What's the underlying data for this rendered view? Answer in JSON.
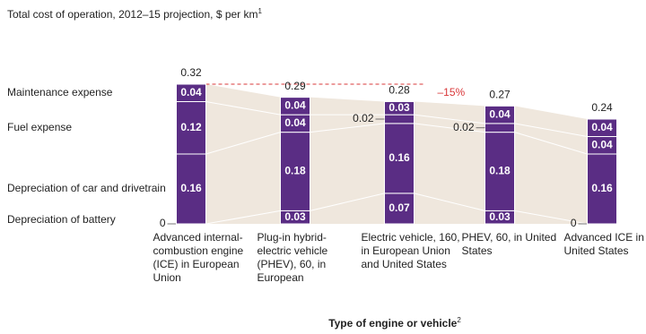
{
  "chart_data": {
    "type": "stacked-bar",
    "title": "Total cost of operation, 2012–15 projection, $ per km",
    "title_note": "1",
    "x_label": "Type of engine or vehicle",
    "x_label_note": "2",
    "categories": [
      "Advanced internal-combustion engine (ICE) in European Union",
      "Plug-in hybrid-electric vehicle (PHEV), 60, in European",
      "Electric vehicle, 160, in European Union and United States",
      "PHEV, 60, in United States",
      "Advanced ICE in United States"
    ],
    "series": [
      {
        "name": "Depreciation of battery",
        "color": "#5a2d84",
        "values": [
          0,
          0.03,
          0.07,
          0.03,
          0
        ]
      },
      {
        "name": "Depreciation of car and drivetrain",
        "color": "#5a2d84",
        "values": [
          0.16,
          0.18,
          0.16,
          0.18,
          0.16
        ]
      },
      {
        "name": "Fuel expense",
        "color": "#5a2d84",
        "values": [
          0.12,
          0.04,
          0.02,
          0.02,
          0.04
        ]
      },
      {
        "name": "Maintenance expense",
        "color": "#5a2d84",
        "values": [
          0.04,
          0.04,
          0.03,
          0.04,
          0.04
        ]
      }
    ],
    "totals": [
      0.32,
      0.29,
      0.28,
      0.27,
      0.24
    ],
    "annotation": "–15%",
    "ylim": [
      0,
      0.32
    ]
  }
}
